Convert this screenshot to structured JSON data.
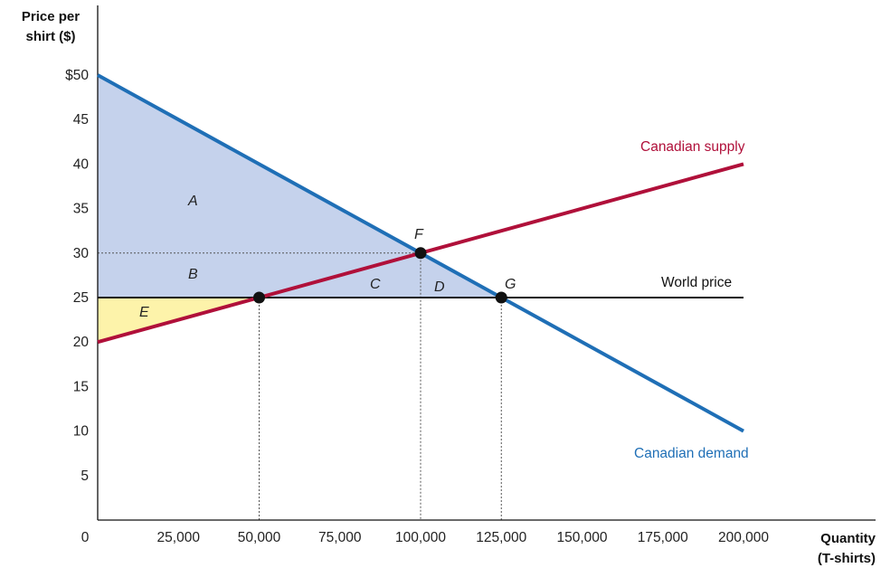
{
  "chart_data": {
    "type": "line",
    "y_axis_title": [
      "Price per",
      "shirt ($)"
    ],
    "x_axis_title": [
      "Quantity",
      "(T-shirts)"
    ],
    "x_ticks": [
      {
        "value": 0,
        "label": "0"
      },
      {
        "value": 25000,
        "label": "25,000"
      },
      {
        "value": 50000,
        "label": "50,000"
      },
      {
        "value": 75000,
        "label": "75,000"
      },
      {
        "value": 100000,
        "label": "100,000"
      },
      {
        "value": 125000,
        "label": "125,000"
      },
      {
        "value": 150000,
        "label": "150,000"
      },
      {
        "value": 175000,
        "label": "175,000"
      },
      {
        "value": 200000,
        "label": "200,000"
      }
    ],
    "y_ticks": [
      {
        "value": 5,
        "label": "5"
      },
      {
        "value": 10,
        "label": "10"
      },
      {
        "value": 15,
        "label": "15"
      },
      {
        "value": 20,
        "label": "20"
      },
      {
        "value": 25,
        "label": "25"
      },
      {
        "value": 30,
        "label": "30"
      },
      {
        "value": 35,
        "label": "35"
      },
      {
        "value": 40,
        "label": "40"
      },
      {
        "value": 45,
        "label": "45"
      },
      {
        "value": 50,
        "label": "$50"
      }
    ],
    "xlim": [
      0,
      230000
    ],
    "ylim": [
      0,
      57
    ],
    "series": [
      {
        "name": "Canadian demand",
        "color": "#1f6fb6",
        "points": [
          [
            0,
            50
          ],
          [
            200000,
            10
          ]
        ]
      },
      {
        "name": "Canadian supply",
        "color": "#b0103a",
        "points": [
          [
            0,
            20
          ],
          [
            200000,
            40
          ]
        ]
      },
      {
        "name": "World price",
        "color": "#111111",
        "points": [
          [
            0,
            25
          ],
          [
            200000,
            25
          ]
        ]
      }
    ],
    "points": [
      {
        "label": "",
        "x": 50000,
        "y": 25
      },
      {
        "label": "F",
        "x": 100000,
        "y": 30
      },
      {
        "label": "G",
        "x": 125000,
        "y": 25
      }
    ],
    "regions": [
      {
        "label": "A",
        "color": "#c5d2ec",
        "polygon": [
          [
            0,
            50
          ],
          [
            0,
            30
          ],
          [
            100000,
            30
          ]
        ]
      },
      {
        "label": "B",
        "color": "#c5d2ec",
        "polygon": [
          [
            0,
            30
          ],
          [
            0,
            25
          ],
          [
            50000,
            25
          ],
          [
            100000,
            30
          ]
        ]
      },
      {
        "label": "C",
        "color": "#c5d2ec",
        "polygon": [
          [
            50000,
            25
          ],
          [
            100000,
            30
          ],
          [
            100000,
            25
          ]
        ]
      },
      {
        "label": "D",
        "color": "#c5d2ec",
        "polygon": [
          [
            100000,
            30
          ],
          [
            125000,
            25
          ],
          [
            100000,
            25
          ]
        ]
      },
      {
        "label": "E",
        "color": "#fdf3aa",
        "polygon": [
          [
            0,
            25
          ],
          [
            0,
            20
          ],
          [
            50000,
            25
          ]
        ]
      }
    ],
    "guides": {
      "horizontal": [
        {
          "y": 30,
          "x_to": 100000
        }
      ],
      "vertical": [
        {
          "x": 50000,
          "y_from": 25
        },
        {
          "x": 100000,
          "y_from": 30
        },
        {
          "x": 125000,
          "y_from": 25
        }
      ]
    },
    "grid": false
  }
}
